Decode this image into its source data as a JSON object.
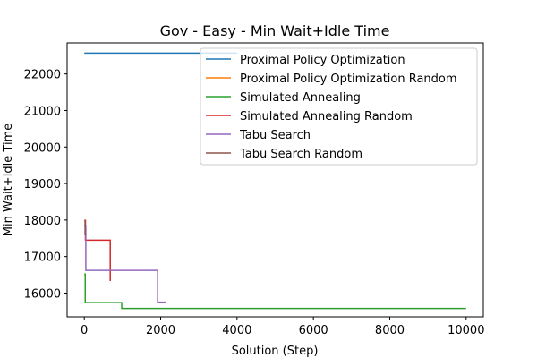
{
  "chart_data": {
    "type": "line",
    "title": "Gov - Easy - Min Wait+Idle Time",
    "xlabel": "Solution (Step)",
    "ylabel": "Min Wait+Idle Time",
    "xlim": [
      -450,
      10450
    ],
    "ylim": [
      15350,
      22850
    ],
    "xticks": [
      0,
      2000,
      4000,
      6000,
      8000,
      10000
    ],
    "xtick_labels": [
      "0",
      "2000",
      "4000",
      "6000",
      "8000",
      "10000"
    ],
    "yticks": [
      16000,
      17000,
      18000,
      19000,
      20000,
      21000,
      22000
    ],
    "ytick_labels": [
      "16000",
      "17000",
      "18000",
      "19000",
      "20000",
      "21000",
      "22000"
    ],
    "grid": false,
    "legend_position": "upper right",
    "series": [
      {
        "name": "Proximal Policy Optimization",
        "color": "#1f77b4",
        "points": [
          [
            0,
            22570
          ],
          [
            4000,
            22570
          ]
        ]
      },
      {
        "name": "Proximal Policy Optimization Random",
        "color": "#ff7f0e",
        "points": [
          [
            0,
            16500
          ],
          [
            5,
            16500
          ]
        ]
      },
      {
        "name": "Simulated Annealing",
        "color": "#2ca02c",
        "points": [
          [
            0,
            16520
          ],
          [
            25,
            16520
          ],
          [
            25,
            15740
          ],
          [
            980,
            15740
          ],
          [
            980,
            15580
          ],
          [
            10000,
            15580
          ]
        ]
      },
      {
        "name": "Simulated Annealing Random",
        "color": "#d62728",
        "points": [
          [
            0,
            17990
          ],
          [
            30,
            17990
          ],
          [
            30,
            17450
          ],
          [
            680,
            17450
          ],
          [
            680,
            16330
          ]
        ]
      },
      {
        "name": "Tabu Search",
        "color": "#9467bd",
        "points": [
          [
            0,
            17850
          ],
          [
            40,
            17850
          ],
          [
            40,
            16620
          ],
          [
            1920,
            16620
          ],
          [
            1920,
            15750
          ],
          [
            2130,
            15750
          ]
        ]
      },
      {
        "name": "Tabu Search Random",
        "color": "#8c564b",
        "points": [
          [
            0,
            17980
          ],
          [
            20,
            17980
          ],
          [
            20,
            17600
          ],
          [
            40,
            17600
          ]
        ]
      }
    ]
  }
}
